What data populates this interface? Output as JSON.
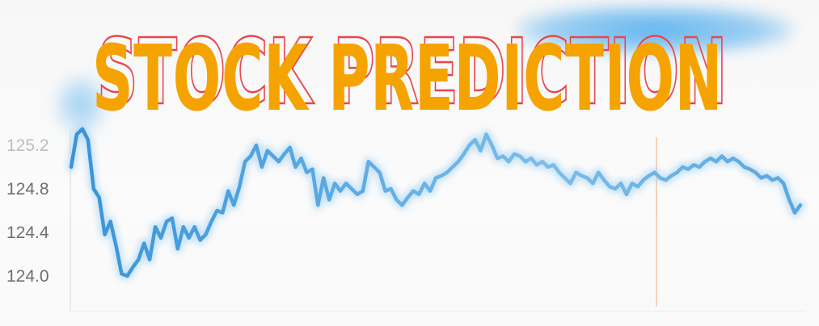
{
  "title": "STOCK PREDICTION",
  "colors": {
    "title_fill": "#f5a300",
    "title_outline": "#e8474c",
    "line": "#3d97dc",
    "line_glow": "#9fd0f3",
    "vertical_marker": "#f0b890",
    "axis": "#dddddd"
  },
  "chart_data": {
    "type": "line",
    "title": "STOCK PREDICTION",
    "xlabel": "",
    "ylabel": "",
    "grid": false,
    "ylim": [
      123.85,
      125.4
    ],
    "yticks": [
      125.2,
      124.8,
      124.4,
      124.0
    ],
    "ytick_labels": [
      "125.2",
      "124.8",
      "124.4",
      "124.0"
    ],
    "x": [
      0,
      1,
      2,
      3,
      4,
      5,
      6,
      7,
      8,
      9,
      10,
      11,
      12,
      13,
      14,
      15,
      16,
      17,
      18,
      19,
      20,
      21,
      22,
      23,
      24,
      25,
      26,
      27,
      28,
      29,
      30,
      31,
      32,
      33,
      34,
      35,
      36,
      37,
      38,
      39,
      40,
      41,
      42,
      43,
      44,
      45,
      46,
      47,
      48,
      49,
      50,
      51,
      52,
      53,
      54,
      55,
      56,
      57,
      58,
      59,
      60,
      61,
      62,
      63,
      64,
      65,
      66,
      67,
      68,
      69,
      70,
      71,
      72,
      73,
      74,
      75,
      76,
      77,
      78,
      79,
      80,
      81,
      82,
      83,
      84,
      85,
      86,
      87,
      88,
      89,
      90,
      91,
      92,
      93,
      94,
      95,
      96,
      97,
      98,
      99,
      100,
      101,
      102,
      103,
      104,
      105,
      106,
      107,
      108,
      109,
      110,
      111,
      112,
      113,
      114,
      115,
      116,
      117,
      118,
      119,
      120,
      121,
      122,
      123,
      124,
      125,
      126,
      127,
      128,
      129,
      130
    ],
    "values": [
      125.0,
      125.3,
      125.35,
      125.25,
      124.8,
      124.72,
      124.38,
      124.5,
      124.28,
      124.02,
      124.0,
      124.08,
      124.15,
      124.3,
      124.15,
      124.45,
      124.35,
      124.5,
      124.53,
      124.25,
      124.45,
      124.35,
      124.45,
      124.33,
      124.38,
      124.5,
      124.6,
      124.58,
      124.78,
      124.65,
      124.82,
      125.05,
      125.1,
      125.2,
      125.0,
      125.15,
      125.1,
      125.05,
      125.12,
      125.18,
      125.0,
      125.08,
      124.95,
      124.98,
      124.65,
      124.9,
      124.7,
      124.85,
      124.78,
      124.85,
      124.8,
      124.75,
      124.78,
      125.05,
      125.0,
      124.95,
      124.78,
      124.8,
      124.7,
      124.65,
      124.72,
      124.78,
      124.75,
      124.85,
      124.78,
      124.9,
      124.92,
      124.95,
      125.0,
      125.05,
      125.12,
      125.2,
      125.25,
      125.15,
      125.3,
      125.2,
      125.08,
      125.1,
      125.05,
      125.12,
      125.1,
      125.05,
      125.08,
      125.02,
      125.05,
      125.0,
      125.02,
      124.95,
      124.9,
      124.85,
      124.95,
      124.92,
      124.9,
      124.85,
      124.95,
      124.88,
      124.82,
      124.8,
      124.85,
      124.75,
      124.85,
      124.82,
      124.88,
      124.92,
      124.95,
      124.9,
      124.88,
      124.92,
      124.95,
      125.0,
      124.98,
      125.02,
      125.0,
      125.05,
      125.08,
      125.05,
      125.1,
      125.05,
      125.08,
      125.05,
      125.0,
      124.98,
      124.95,
      124.9,
      124.92,
      124.88,
      124.9,
      124.85,
      124.7,
      124.58,
      124.65
    ]
  }
}
